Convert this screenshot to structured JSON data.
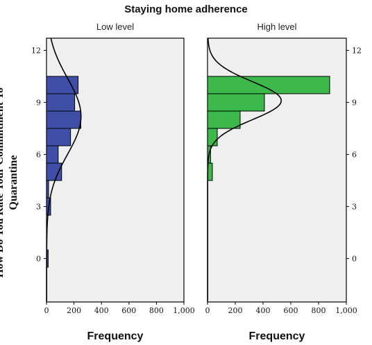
{
  "chart_data": {
    "type": "bar",
    "orientation": "horizontal",
    "title": "Staying home adherence",
    "xlabel": "Frequency",
    "ylabel": "How Do You Rate Your Commitment To Quarantine",
    "xlim": [
      0,
      1000
    ],
    "ylim": [
      -2.5,
      12.7
    ],
    "xticks": [
      "0",
      "200",
      "400",
      "600",
      "800",
      "1,000"
    ],
    "yticks": [
      "0",
      "3",
      "6",
      "9",
      "12"
    ],
    "bin_edges": [
      0,
      1,
      2,
      3,
      4,
      5,
      6,
      7,
      8,
      9,
      10
    ],
    "panels": [
      {
        "name": "Low level",
        "color": "#3f4fa8",
        "frequencies": [
          12,
          0,
          0,
          30,
          15,
          110,
          85,
          175,
          250,
          205,
          230
        ],
        "normal_curve": {
          "mean": 8.2,
          "sd": 2.2,
          "peak": 250
        }
      },
      {
        "name": "High level",
        "color": "#3cb94a",
        "frequencies": [
          0,
          0,
          0,
          0,
          0,
          35,
          22,
          70,
          235,
          410,
          880
        ],
        "normal_curve": {
          "mean": 9.1,
          "sd": 1.1,
          "peak": 530
        }
      }
    ]
  }
}
